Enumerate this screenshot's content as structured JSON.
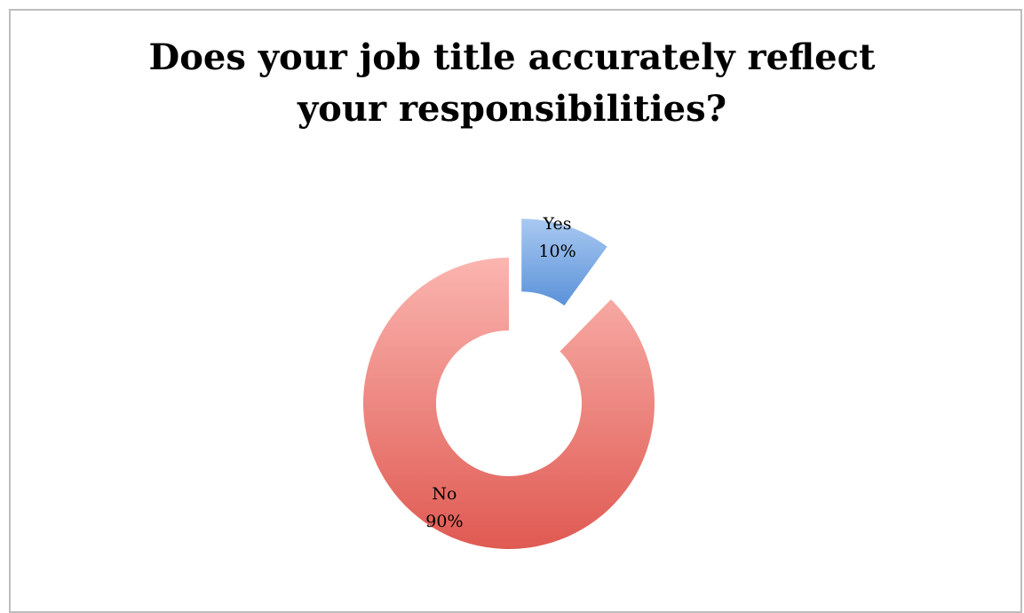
{
  "chart_data": {
    "type": "pie",
    "title_lines": [
      "Does your job title accurately reflect",
      "your responsibilities?"
    ],
    "slices": [
      {
        "label": "Yes",
        "value": 10,
        "value_label": "10%",
        "color": "#7eaee6",
        "color_dark": "#5d93d9",
        "exploded": true
      },
      {
        "label": "No",
        "value": 90,
        "value_label": "90%",
        "color": "#f4a19c",
        "color_dark": "#e05a52",
        "exploded": false
      }
    ],
    "style": "doughnut",
    "legend": "none"
  }
}
